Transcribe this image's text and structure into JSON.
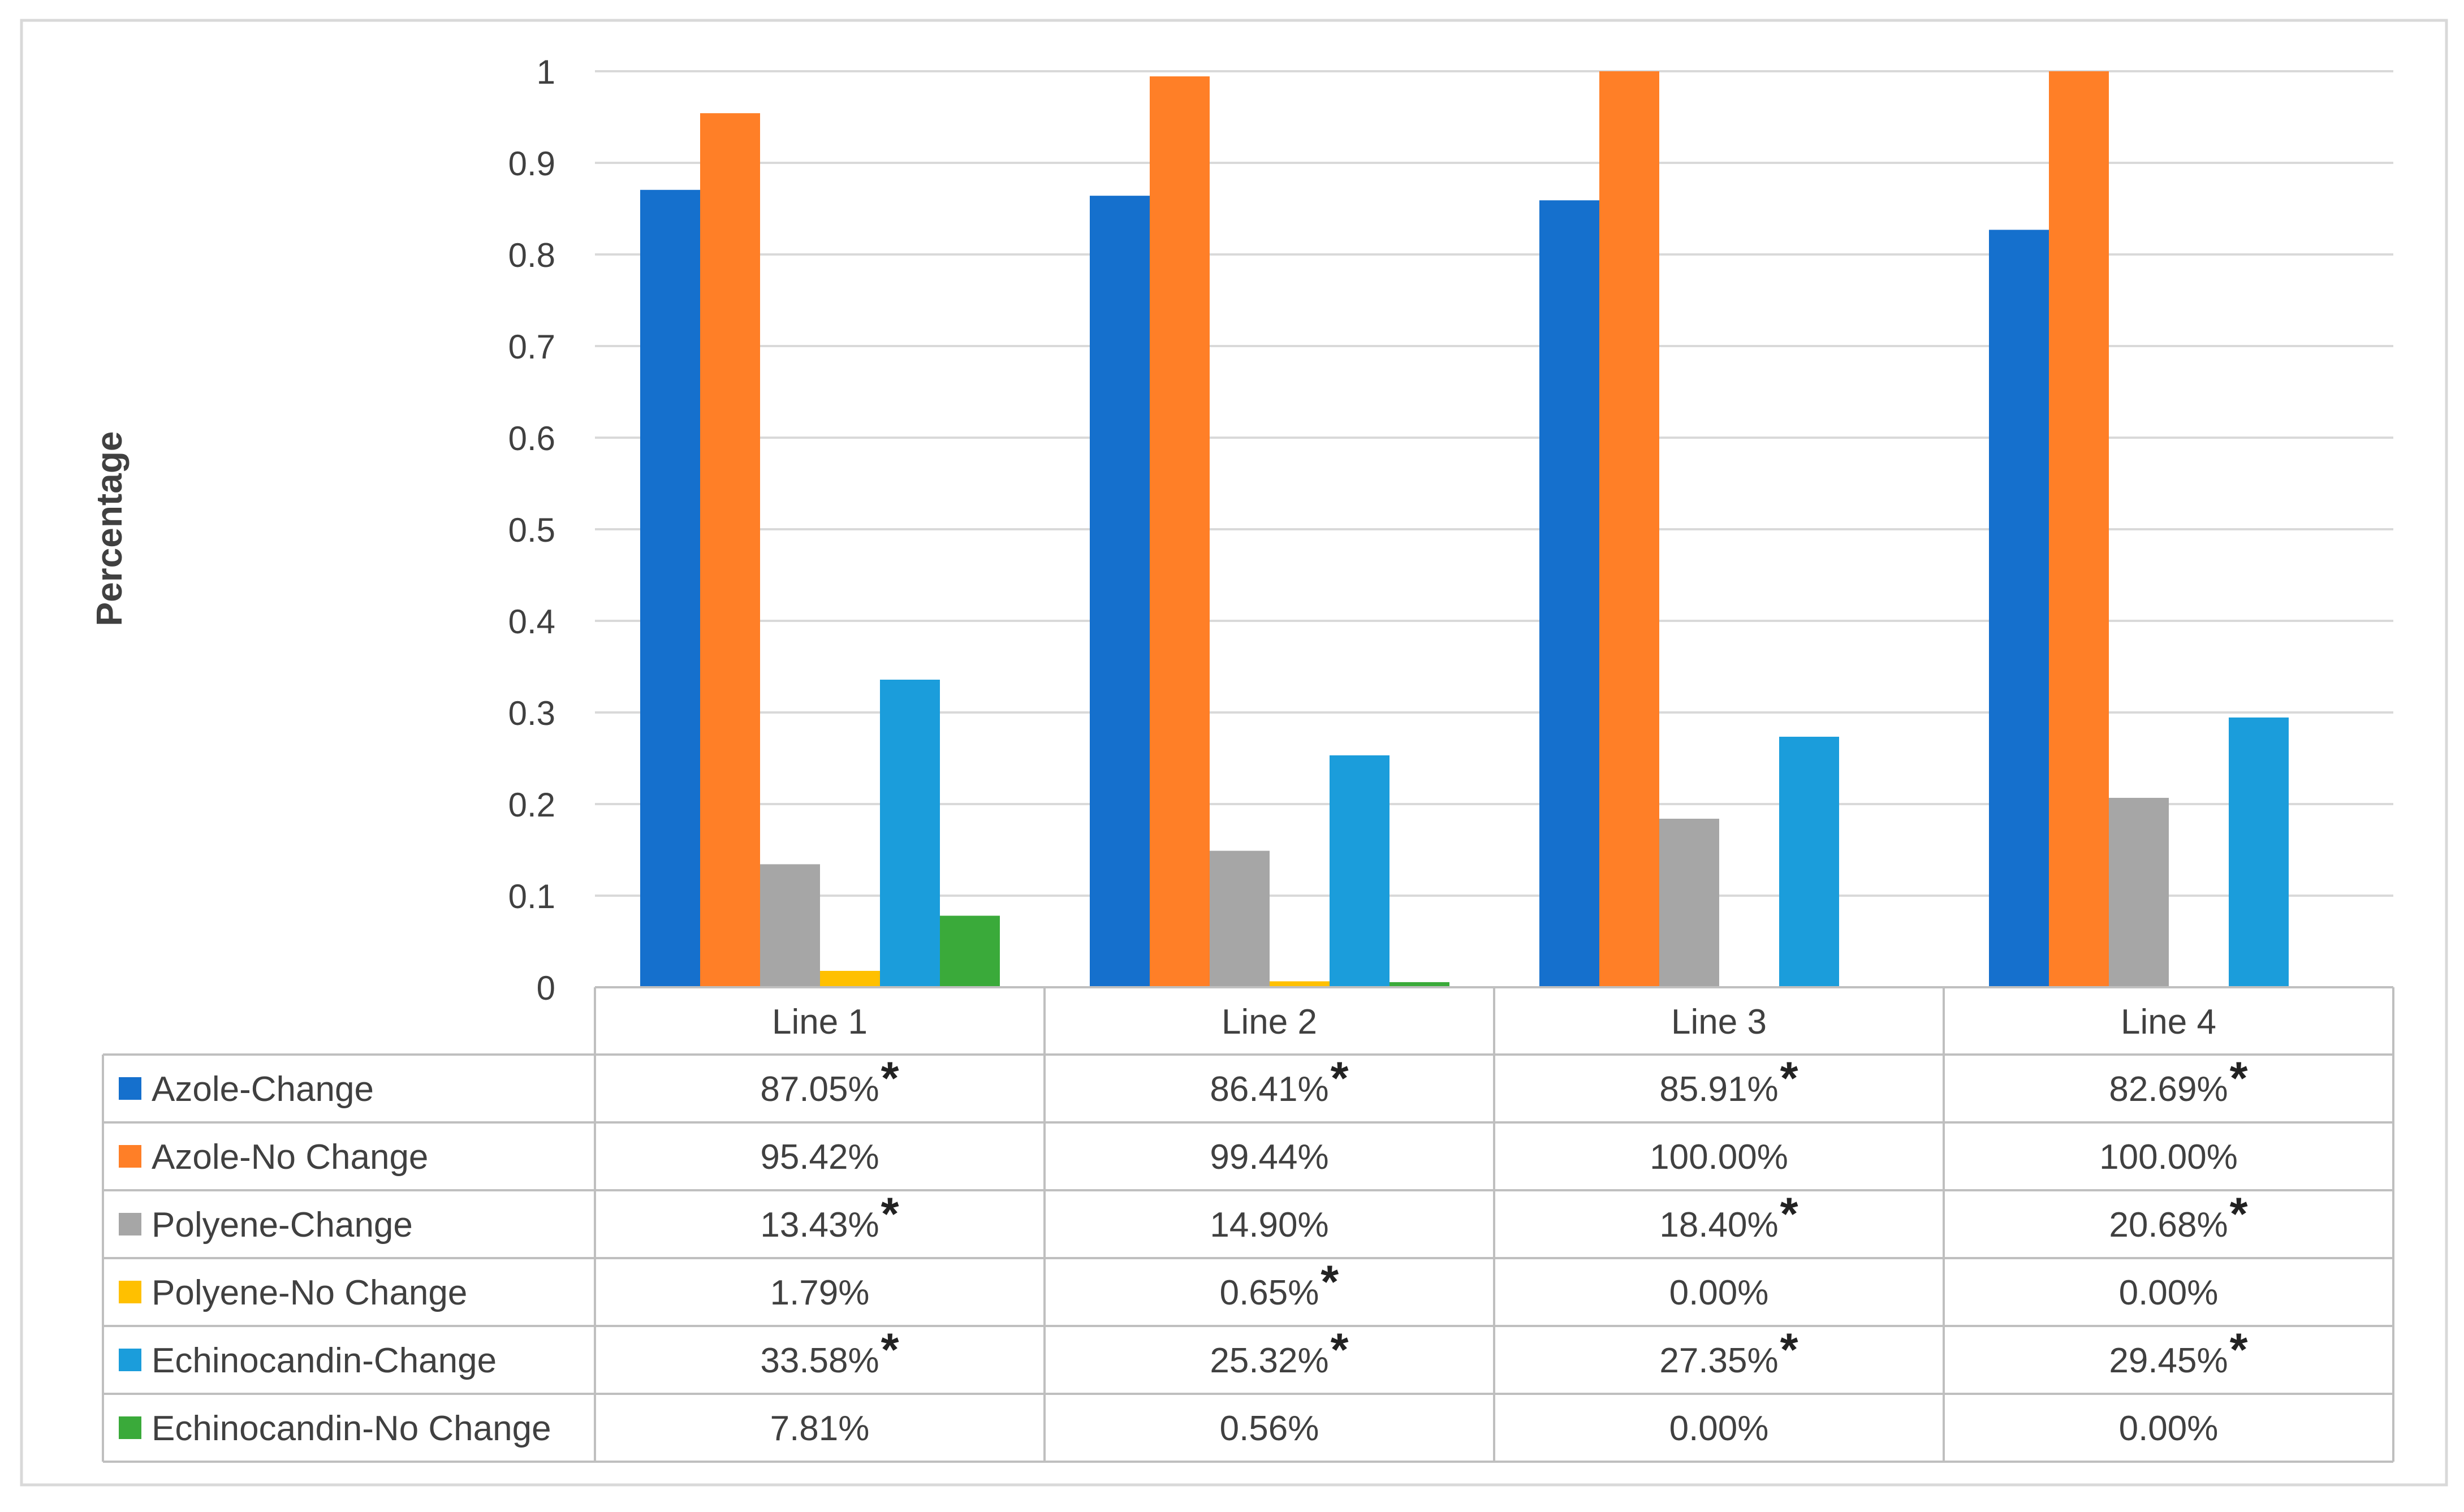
{
  "chart_data": {
    "type": "bar",
    "title": "",
    "xlabel": "",
    "ylabel": "Percentage",
    "ylim": [
      0,
      1
    ],
    "yticks": [
      "0",
      "0.1",
      "0.2",
      "0.3",
      "0.4",
      "0.5",
      "0.6",
      "0.7",
      "0.8",
      "0.9",
      "1"
    ],
    "grid": true,
    "legend": "data-table-left",
    "categories": [
      "Line 1",
      "Line 2",
      "Line 3",
      "Line 4"
    ],
    "series": [
      {
        "name": "Azole-Change",
        "color": "#1570CD",
        "values": [
          0.8705,
          0.8641,
          0.8591,
          0.8269
        ],
        "labels": [
          "87.05%",
          "86.41%",
          "85.91%",
          "82.69%"
        ],
        "star": [
          true,
          true,
          true,
          true
        ]
      },
      {
        "name": "Azole-No Change",
        "color": "#FF7F27",
        "values": [
          0.9542,
          0.9944,
          1.0,
          1.0
        ],
        "labels": [
          "95.42%",
          "99.44%",
          "100.00%",
          "100.00%"
        ],
        "star": [
          false,
          false,
          false,
          false
        ]
      },
      {
        "name": "Polyene-Change",
        "color": "#A6A6A6",
        "values": [
          0.1343,
          0.149,
          0.184,
          0.2068
        ],
        "labels": [
          "13.43%",
          "14.90%",
          "18.40%",
          "20.68%"
        ],
        "star": [
          true,
          false,
          true,
          true
        ]
      },
      {
        "name": "Polyene-No Change",
        "color": "#FFC000",
        "values": [
          0.0179,
          0.0065,
          0.0,
          0.0
        ],
        "labels": [
          "1.79%",
          "0.65%",
          "0.00%",
          "0.00%"
        ],
        "star": [
          false,
          true,
          false,
          false
        ]
      },
      {
        "name": "Echinocandin-Change",
        "color": "#1B9DDB",
        "values": [
          0.3358,
          0.2532,
          0.2735,
          0.2945
        ],
        "labels": [
          "33.58%",
          "25.32%",
          "27.35%",
          "29.45%"
        ],
        "star": [
          true,
          true,
          true,
          true
        ]
      },
      {
        "name": "Echinocandin-No Change",
        "color": "#3AAA3A",
        "values": [
          0.0781,
          0.0056,
          0.0,
          0.0
        ],
        "labels": [
          "7.81%",
          "0.56%",
          "0.00%",
          "0.00%"
        ],
        "star": [
          false,
          false,
          false,
          false
        ]
      }
    ],
    "star_symbol": "*"
  }
}
